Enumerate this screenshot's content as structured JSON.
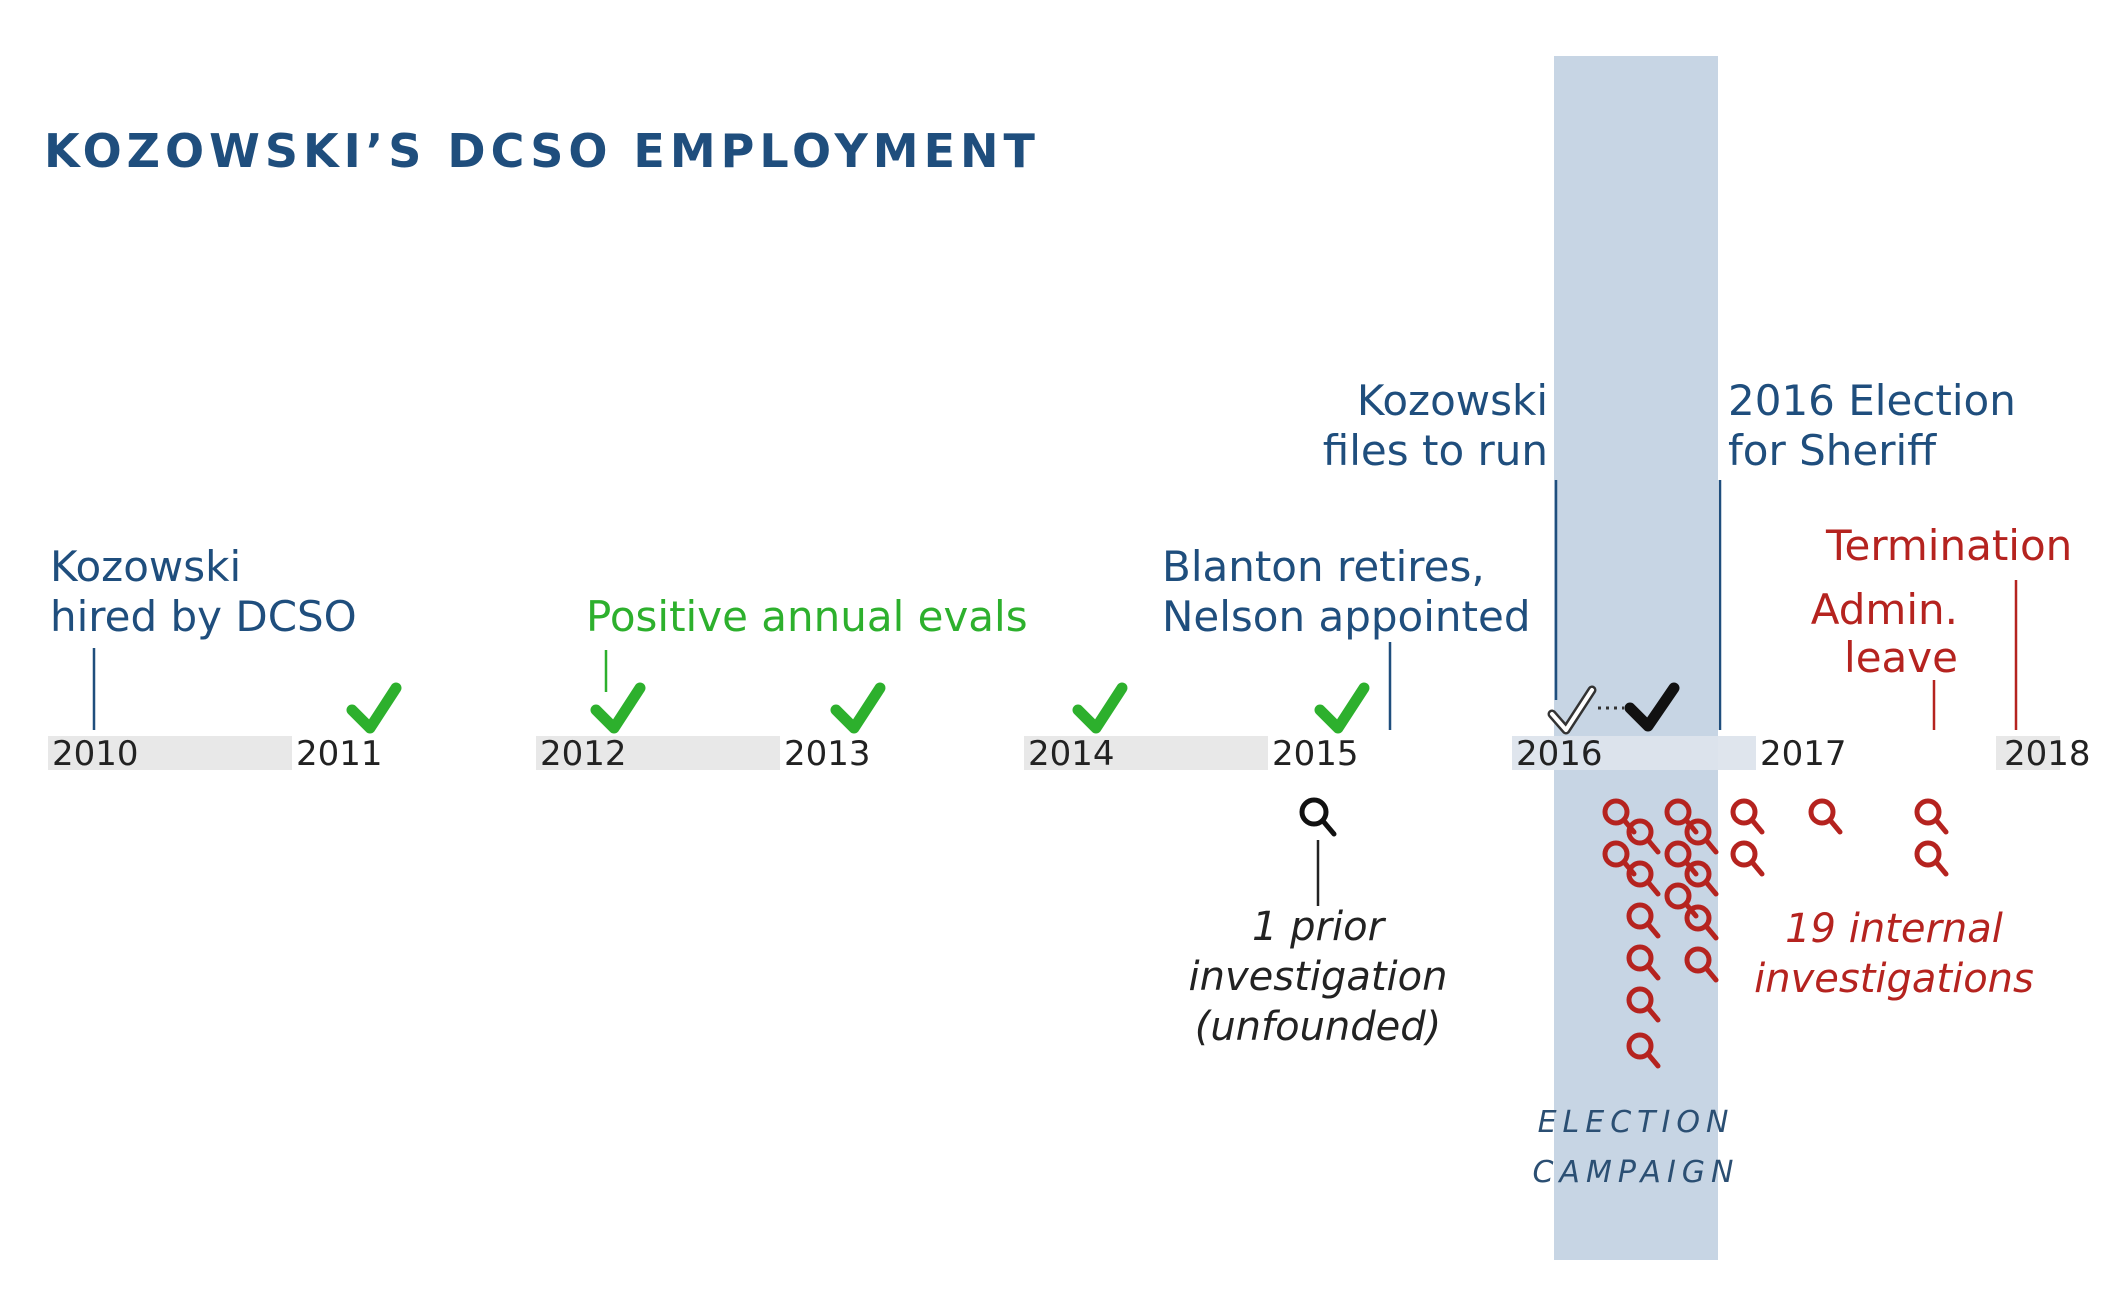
{
  "title": "KOZOWSKI’S DCSO EMPLOYMENT",
  "colors": {
    "navy": "#1f4e7d",
    "green": "#2db02d",
    "red": "#b5231f",
    "band": "#c7d5e4",
    "bar": "#e8e8e8"
  },
  "years": [
    "2010",
    "2011",
    "2012",
    "2013",
    "2014",
    "2015",
    "2016",
    "2017",
    "2018"
  ],
  "events": {
    "hired": [
      "Kozowski",
      "hired by DCSO"
    ],
    "evals": "Positive annual evals",
    "blanton": [
      "Blanton retires,",
      "Nelson appointed"
    ],
    "files": [
      "Kozowski",
      "files to run"
    ],
    "election": [
      "2016 Election",
      "for Sheriff"
    ],
    "termination": "Termination",
    "admin_leave": [
      "Admin.",
      "leave"
    ]
  },
  "prior_investigation": [
    "1 prior",
    "investigation",
    "(unfounded)"
  ],
  "internal_investigations": [
    "19 internal",
    "investigations"
  ],
  "campaign_label": [
    "ELECTION",
    "CAMPAIGN"
  ],
  "icons": {
    "check": "checkmark-icon",
    "outline_check": "outline-checkmark-icon",
    "magnifier": "magnifier-icon"
  }
}
